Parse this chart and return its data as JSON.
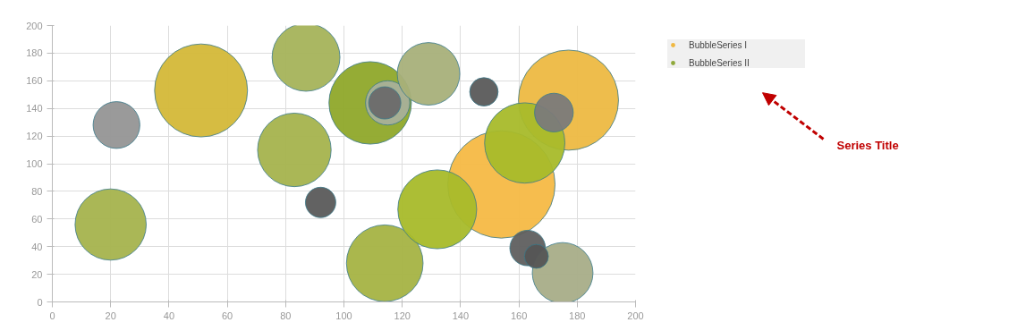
{
  "chart_data": {
    "type": "bubble",
    "xlim": [
      0,
      200
    ],
    "ylim": [
      0,
      200
    ],
    "xticks": [
      0,
      20,
      40,
      60,
      80,
      100,
      120,
      140,
      160,
      180,
      200
    ],
    "yticks": [
      0,
      20,
      40,
      60,
      80,
      100,
      120,
      140,
      160,
      180,
      200
    ],
    "grid": true,
    "legend": "top right",
    "annotations": [
      "Series Title"
    ],
    "series": [
      {
        "name": "BubbleSeries I",
        "color": "#f0b840",
        "x": [
          51,
          154,
          177
        ],
        "values": [
          153,
          85,
          146
        ],
        "sizes": [
          0.75,
          1.0,
          0.87
        ],
        "colors": [
          "#d4b838",
          "#f5b945",
          "#edb942"
        ]
      },
      {
        "name": "BubbleSeries II",
        "color": "#8fa83a",
        "x": [
          20,
          22,
          87,
          83,
          92,
          109,
          115,
          114,
          129,
          148,
          114,
          132,
          162,
          172,
          163,
          175,
          166
        ],
        "values": [
          56,
          128,
          177,
          110,
          72,
          144,
          144,
          144,
          165,
          152,
          28,
          67,
          115,
          137,
          39,
          21,
          33
        ],
        "sizes": [
          0.44,
          0.19,
          0.4,
          0.47,
          0.08,
          0.59,
          0.17,
          0.09,
          0.34,
          0.07,
          0.51,
          0.54,
          0.56,
          0.13,
          0.11,
          0.32,
          0.05
        ],
        "colors": [
          "#a5b34d",
          "#959595",
          "#a5b35a",
          "#a5b34d",
          "#5a5a5a",
          "#8fa82a",
          "#a8b09a",
          "#6a6a6a",
          "#a8b07a",
          "#5a5a5a",
          "#a5b343",
          "#a8ba2a",
          "#a8ba2a",
          "#7a7a7a",
          "#5f5f5f",
          "#a8ad88",
          "#555555"
        ]
      }
    ]
  }
}
